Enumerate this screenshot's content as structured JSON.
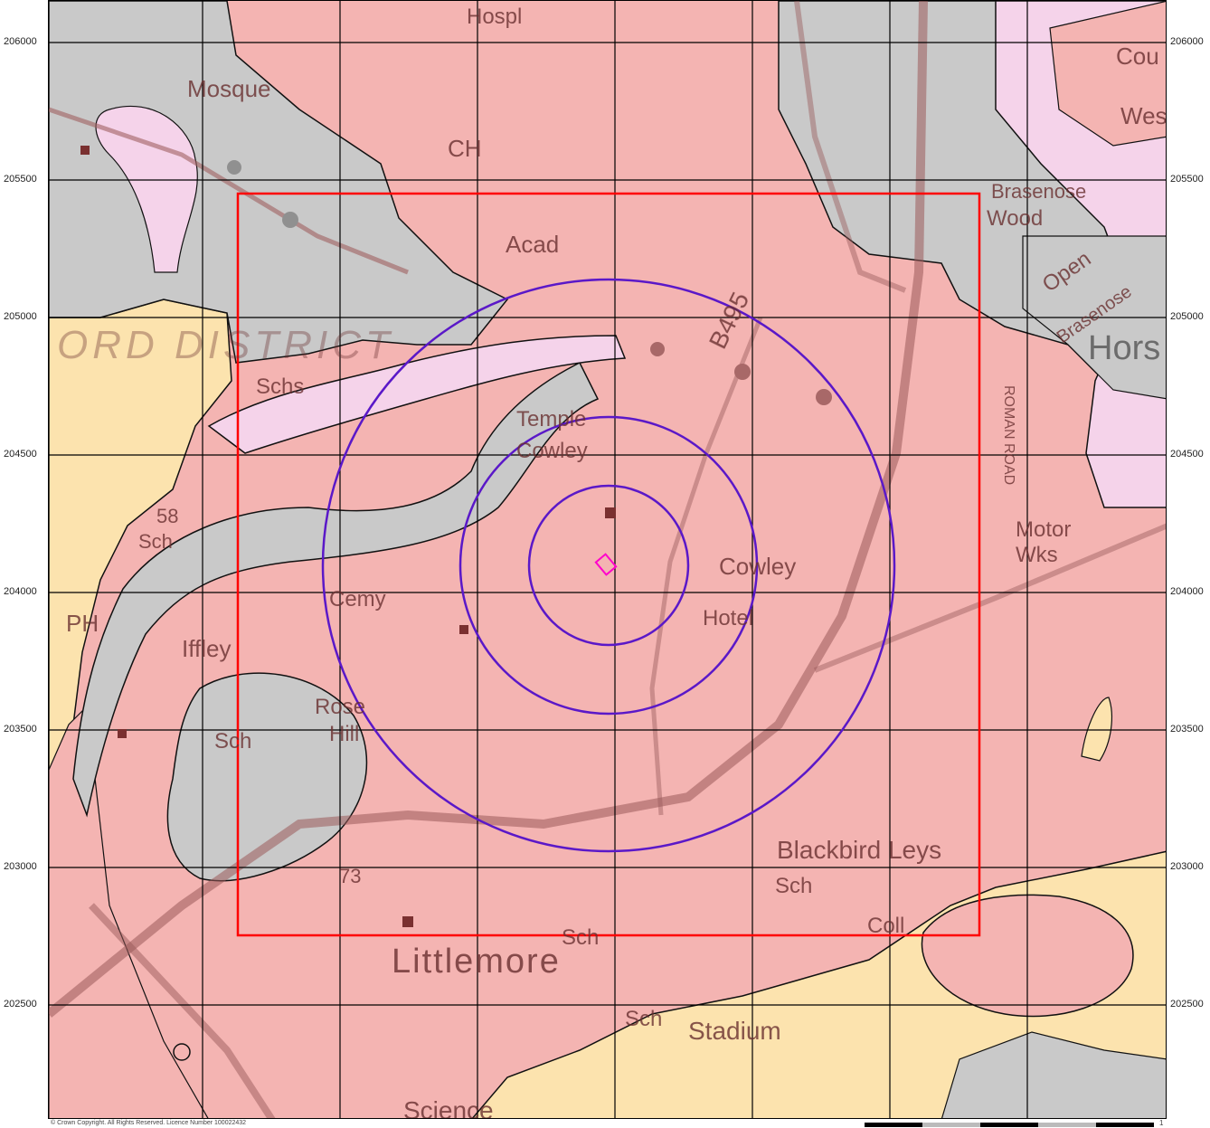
{
  "map": {
    "grid_northings": [
      "206000",
      "205500",
      "205000",
      "204500",
      "204000",
      "203500",
      "203000",
      "202500"
    ],
    "colors": {
      "made_ground": "#f4b4b2",
      "alluvium": "#fce3ae",
      "clay": "#c9c9c9",
      "pink_terrace": "#f5d3ea",
      "study_box": "#ff0000",
      "buffer_rings": "#5a18c8",
      "site_outline": "#ff00cc",
      "gridlines": "#000000",
      "roads": "#9a5a5a"
    },
    "buffer_ring_count": 3,
    "place_labels": {
      "hospital": "Hospl",
      "mosque": "Mosque",
      "ch": "CH",
      "acad": "Acad",
      "district": "ORD DISTRICT",
      "schs": "Schs",
      "temple_cowley_1": "Temple",
      "temple_cowley_2": "Cowley",
      "road_b495": "B495",
      "sch_58": "Sch",
      "num_58": "58",
      "cemy": "Cemy",
      "ph": "PH",
      "iffley": "Iffley",
      "rose": "Rose",
      "hill": "Hill",
      "sch_rosehill": "Sch",
      "cowley": "Cowley",
      "hotel": "Hotel",
      "motor": "Motor",
      "wks": "Wks",
      "roman_road": "ROMAN ROAD",
      "brasenose": "Brasenose",
      "wood": "Wood",
      "open": "Open",
      "brasenose_2": "Brasenose",
      "hors": "Hors",
      "cou": "Cou",
      "wes": "Wes",
      "blackbird_leys": "Blackbird Leys",
      "sch_bl": "Sch",
      "coll": "Coll",
      "num_73": "73",
      "sch_lm": "Sch",
      "littlemore": "Littlemore",
      "sch_stadium": "Sch",
      "stadium": "Stadium",
      "science": "Science"
    },
    "copyright": "© Crown Copyright. All Rights Reserved. Licence Number 100022432",
    "scale_end_label": "1"
  }
}
